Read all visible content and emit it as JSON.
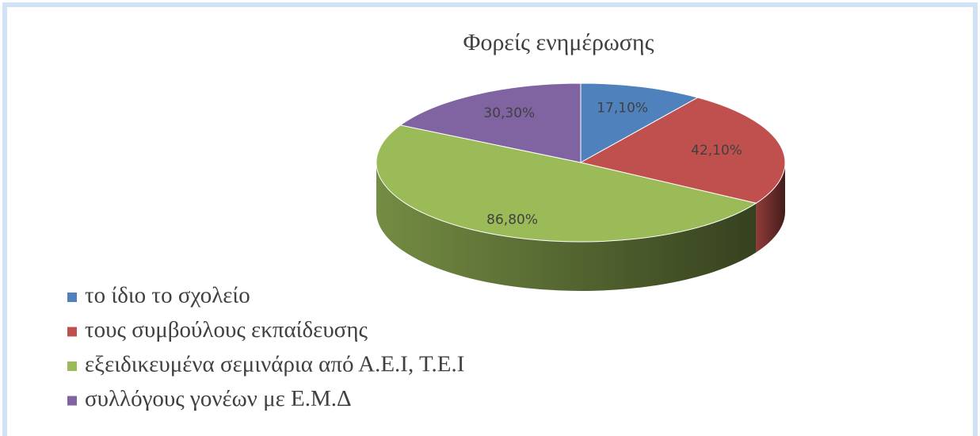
{
  "chart_data": {
    "type": "pie",
    "title": "Φορείς ενημέρωσης",
    "categories": [
      "το ίδιο το σχολείο",
      "τους συμβούλους εκπαίδευσης",
      "εξειδικευμένα σεμινάρια από Α.Ε.Ι, Τ.Ε.Ι",
      "συλλόγους γονέων με Ε.Μ.Δ"
    ],
    "values": [
      17.1,
      42.1,
      86.8,
      30.3
    ],
    "value_labels": [
      "17,10%",
      "42,10%",
      "86,80%",
      "30,30%"
    ],
    "colors": [
      "#4f81bd",
      "#c0504d",
      "#9bbb59",
      "#8064a2"
    ]
  }
}
